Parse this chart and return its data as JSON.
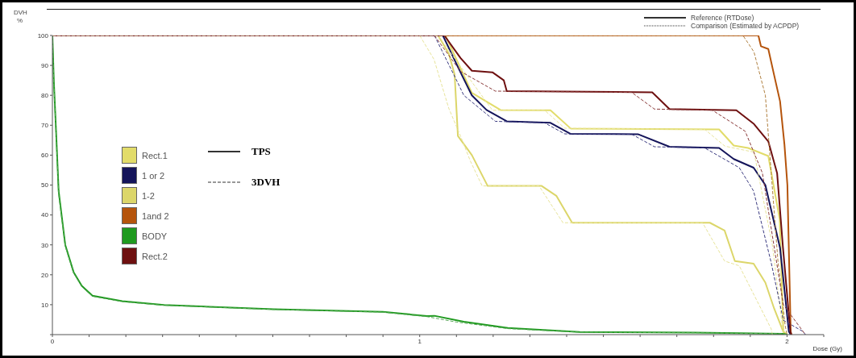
{
  "chart_data": {
    "type": "line",
    "xlabel": "Dose (Gy)",
    "ylabel": "DVH\n%",
    "xlim": [
      0,
      2.1
    ],
    "ylim": [
      0,
      100
    ],
    "xticks": [
      0,
      {
        "value": 0.1,
        "label": null
      },
      {
        "value": 0.2,
        "label": null
      },
      {
        "value": 0.3,
        "label": null
      },
      {
        "value": 0.4,
        "label": null
      },
      {
        "value": 0.5,
        "label": null
      },
      {
        "value": 0.6,
        "label": null
      },
      {
        "value": 0.7,
        "label": null
      },
      {
        "value": 0.8,
        "label": null
      },
      {
        "value": 0.9,
        "label": null
      },
      1,
      {
        "value": 1.1,
        "label": null
      },
      {
        "value": 1.2,
        "label": null
      },
      {
        "value": 1.3,
        "label": null
      },
      {
        "value": 1.4,
        "label": null
      },
      {
        "value": 1.5,
        "label": null
      },
      {
        "value": 1.6,
        "label": null
      },
      {
        "value": 1.7,
        "label": null
      },
      {
        "value": 1.8,
        "label": null
      },
      {
        "value": 1.9,
        "label": null
      },
      2,
      {
        "value": 2.1,
        "label": null
      }
    ],
    "yticks": [
      {
        "value": 0,
        "label": null
      },
      10,
      20,
      30,
      40,
      50,
      60,
      70,
      80,
      90,
      100
    ],
    "legend": "left",
    "marker": "none",
    "annotations": [
      "TPS",
      "3DVH",
      "Reference (RTDose)",
      "Comparison (Estimated by ACPDP)"
    ],
    "series": [
      {
        "name": "Rect.1",
        "color": "#e2dc6a",
        "line_style": "solid",
        "x": [
          0,
          1.07,
          1.142,
          1.22,
          1.356,
          1.411,
          1.815,
          1.855,
          1.894,
          1.949,
          1.98,
          1.99,
          2.0
        ],
        "values": [
          100,
          100,
          80.8,
          75.1,
          75,
          68.9,
          68.6,
          63.2,
          62.4,
          59.7,
          38.6,
          1,
          0
        ]
      },
      {
        "name": "1 or 2",
        "color": "#14145a",
        "line_style": "solid",
        "x": [
          0,
          1.063,
          1.111,
          1.142,
          1.182,
          1.237,
          1.356,
          1.411,
          1.594,
          1.68,
          1.815,
          1.855,
          1.909,
          1.941,
          1.981,
          2.005,
          2.01
        ],
        "values": [
          100,
          100,
          87.7,
          80,
          75.1,
          71.3,
          70.8,
          67.1,
          67,
          62.8,
          62.4,
          58.7,
          55.8,
          50,
          29,
          1,
          0
        ]
      },
      {
        "name": "1-2",
        "color": "#dcd66a",
        "line_style": "solid",
        "x": [
          0,
          1.05,
          1.079,
          1.095,
          1.104,
          1.142,
          1.185,
          1.332,
          1.372,
          1.415,
          1.79,
          1.83,
          1.858,
          1.909,
          1.941,
          1.965,
          1.99,
          1.995
        ],
        "values": [
          100,
          100,
          94,
          87,
          66.4,
          60,
          49.7,
          49.7,
          46.4,
          37.4,
          37.4,
          34.8,
          24.6,
          23.7,
          17.4,
          8.7,
          0.9,
          0
        ]
      },
      {
        "name": "1and 2",
        "color": "#b5540c",
        "line_style": "solid",
        "x": [
          0,
          1.922,
          1.929,
          1.949,
          1.965,
          1.981,
          1.993,
          2.001,
          2.01,
          2.012
        ],
        "values": [
          100,
          100,
          96.4,
          95.5,
          86.7,
          78,
          63.5,
          50,
          1,
          0
        ]
      },
      {
        "name": "BODY",
        "color": "#1f9a1f",
        "line_style": "solid",
        "x": [
          0,
          0.004,
          0.01,
          0.017,
          0.035,
          0.058,
          0.08,
          0.109,
          0.19,
          0.304,
          0.602,
          0.9,
          1.02,
          1.04,
          1.12,
          1.24,
          1.435,
          1.75,
          1.99,
          2.0
        ],
        "values": [
          100,
          84.5,
          68,
          48,
          30,
          20.8,
          16.3,
          13,
          11.2,
          9.9,
          8.5,
          7.6,
          6.2,
          6.3,
          4.3,
          2.2,
          0.9,
          0.7,
          0.3,
          0
        ]
      },
      {
        "name": "Rect.2",
        "color": "#6e1010",
        "line_style": "solid",
        "x": [
          0,
          1.067,
          1.111,
          1.142,
          1.198,
          1.229,
          1.237,
          1.633,
          1.68,
          1.862,
          1.91,
          1.949,
          1.973,
          1.989,
          2.009,
          2.012
        ],
        "values": [
          100,
          100,
          92.5,
          88.2,
          87.7,
          85,
          81.4,
          81,
          75.4,
          75,
          70.4,
          64.6,
          54,
          29,
          1,
          0
        ]
      },
      {
        "color": "#e8e49a",
        "line_style": "dashed",
        "x": [
          0,
          1.05,
          1.198,
          1.34,
          1.395,
          1.776,
          1.831,
          1.91,
          1.96,
          1.99
        ],
        "values": [
          100,
          100,
          75,
          75,
          69,
          68.6,
          63,
          61,
          30,
          0
        ]
      },
      {
        "color": "#3a3a80",
        "line_style": "dashed",
        "x": [
          0,
          1.04,
          1.104,
          1.12,
          1.206,
          1.34,
          1.395,
          1.577,
          1.639,
          1.776,
          1.87,
          1.909,
          1.957,
          1.99,
          2.044,
          2.05
        ],
        "values": [
          100,
          100,
          84.1,
          80,
          71.3,
          70.8,
          67.1,
          67,
          62.8,
          62.4,
          55.8,
          48,
          24,
          4.8,
          1,
          0
        ]
      },
      {
        "color": "#e8e49a",
        "line_style": "dashed",
        "x": [
          0,
          1.0,
          1.039,
          1.079,
          1.111,
          1.138,
          1.17,
          1.325,
          1.39,
          1.77,
          1.83,
          1.87,
          1.957,
          1.96
        ],
        "values": [
          100,
          100,
          92,
          75.7,
          66.4,
          58,
          49.7,
          49.7,
          37.4,
          37.4,
          24.6,
          23,
          1.9,
          0
        ]
      },
      {
        "color": "#b08040",
        "line_style": "dashed",
        "x": [
          0,
          1.88,
          1.91,
          1.941,
          1.957,
          1.975,
          1.995,
          2.0
        ],
        "values": [
          100,
          100,
          94.5,
          80,
          54,
          25,
          3,
          0
        ]
      },
      {
        "color": "#5aa85a",
        "line_style": "dashed",
        "x": [
          0,
          0.004,
          0.01,
          0.017,
          0.035,
          0.058,
          0.08,
          0.109,
          0.19,
          0.304,
          0.602,
          0.9,
          1.02,
          1.1,
          1.24,
          1.435,
          1.75,
          1.99,
          2.0
        ],
        "values": [
          100,
          84,
          67,
          47,
          29.5,
          20.5,
          16,
          12.8,
          11,
          9.8,
          8.4,
          7.5,
          6,
          4.2,
          2,
          0.8,
          0.6,
          0.3,
          0
        ]
      },
      {
        "color": "#8a3a3a",
        "line_style": "dashed",
        "x": [
          0,
          1.04,
          1.111,
          1.206,
          1.577,
          1.639,
          1.797,
          1.886,
          1.933,
          1.99,
          2.05
        ],
        "values": [
          100,
          100,
          88,
          81.4,
          81,
          75.4,
          75,
          68,
          54,
          10,
          0
        ]
      }
    ]
  }
}
